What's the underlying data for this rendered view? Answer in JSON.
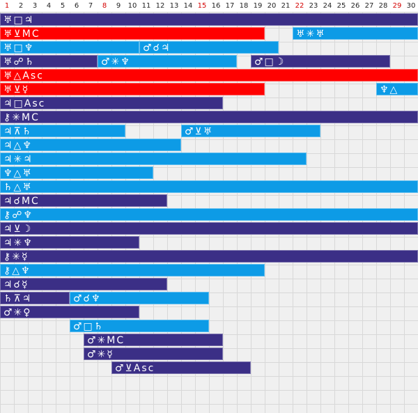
{
  "colors": {
    "dark": "#3b2f86",
    "light": "#0d9be6",
    "red": "#ff0000",
    "weekend": "#d40000"
  },
  "days": [
    {
      "label": "1",
      "hl": true
    },
    {
      "label": "2",
      "hl": false
    },
    {
      "label": "3",
      "hl": false
    },
    {
      "label": "4",
      "hl": false
    },
    {
      "label": "5",
      "hl": false
    },
    {
      "label": "6",
      "hl": false
    },
    {
      "label": "7",
      "hl": false
    },
    {
      "label": "8",
      "hl": true
    },
    {
      "label": "9",
      "hl": false
    },
    {
      "label": "10",
      "hl": false
    },
    {
      "label": "11",
      "hl": false
    },
    {
      "label": "12",
      "hl": false
    },
    {
      "label": "13",
      "hl": false
    },
    {
      "label": "14",
      "hl": false
    },
    {
      "label": "15",
      "hl": true
    },
    {
      "label": "16",
      "hl": false
    },
    {
      "label": "17",
      "hl": false
    },
    {
      "label": "18",
      "hl": false
    },
    {
      "label": "19",
      "hl": false
    },
    {
      "label": "20",
      "hl": false
    },
    {
      "label": "21",
      "hl": false
    },
    {
      "label": "22",
      "hl": true
    },
    {
      "label": "23",
      "hl": false
    },
    {
      "label": "24",
      "hl": false
    },
    {
      "label": "25",
      "hl": false
    },
    {
      "label": "26",
      "hl": false
    },
    {
      "label": "27",
      "hl": false
    },
    {
      "label": "28",
      "hl": false
    },
    {
      "label": "29",
      "hl": true
    },
    {
      "label": "30",
      "hl": false
    }
  ],
  "rows": [
    [
      {
        "label": "♅□♃",
        "start": 1,
        "end": 30,
        "color": "dark"
      }
    ],
    [
      {
        "label": "♅⊻MC",
        "start": 1,
        "end": 19,
        "color": "red"
      },
      {
        "label": "♅✳♅",
        "start": 22,
        "end": 30,
        "color": "light"
      }
    ],
    [
      {
        "label": "♅□♆",
        "start": 1,
        "end": 10,
        "color": "light"
      },
      {
        "label": "♂☌♃",
        "start": 11,
        "end": 20,
        "color": "light"
      }
    ],
    [
      {
        "label": "♅☍♄",
        "start": 1,
        "end": 7,
        "color": "dark"
      },
      {
        "label": "♂✳♆",
        "start": 8,
        "end": 17,
        "color": "light"
      },
      {
        "label": "♂□☽",
        "start": 19,
        "end": 28,
        "color": "dark"
      }
    ],
    [
      {
        "label": "♅△Asc",
        "start": 1,
        "end": 30,
        "color": "red"
      }
    ],
    [
      {
        "label": "♅⊻☿",
        "start": 1,
        "end": 19,
        "color": "red"
      },
      {
        "label": "♆△",
        "start": 28,
        "end": 30,
        "color": "light"
      }
    ],
    [
      {
        "label": "♃□Asc",
        "start": 1,
        "end": 16,
        "color": "dark"
      }
    ],
    [
      {
        "label": "⚷✳MC",
        "start": 1,
        "end": 30,
        "color": "dark"
      }
    ],
    [
      {
        "label": "♃⊼♄",
        "start": 1,
        "end": 9,
        "color": "light"
      },
      {
        "label": "♂⊻♅",
        "start": 14,
        "end": 23,
        "color": "light"
      }
    ],
    [
      {
        "label": "♃△♆",
        "start": 1,
        "end": 13,
        "color": "light"
      }
    ],
    [
      {
        "label": "♃✳♃",
        "start": 1,
        "end": 22,
        "color": "light"
      }
    ],
    [
      {
        "label": "♆△♅",
        "start": 1,
        "end": 11,
        "color": "light"
      }
    ],
    [
      {
        "label": "♄△♅",
        "start": 1,
        "end": 30,
        "color": "light"
      }
    ],
    [
      {
        "label": "♃☌MC",
        "start": 1,
        "end": 12,
        "color": "dark"
      }
    ],
    [
      {
        "label": "⚷☍♆",
        "start": 1,
        "end": 30,
        "color": "light"
      }
    ],
    [
      {
        "label": "♃⊻☽",
        "start": 1,
        "end": 30,
        "color": "dark"
      }
    ],
    [
      {
        "label": "♃✳♆",
        "start": 1,
        "end": 10,
        "color": "dark"
      }
    ],
    [
      {
        "label": "⚷✳☿",
        "start": 1,
        "end": 30,
        "color": "dark"
      }
    ],
    [
      {
        "label": "⚷△♆",
        "start": 1,
        "end": 19,
        "color": "light"
      }
    ],
    [
      {
        "label": "♃☌☿",
        "start": 1,
        "end": 12,
        "color": "dark"
      }
    ],
    [
      {
        "label": "♄⊼♃",
        "start": 1,
        "end": 5,
        "color": "dark"
      },
      {
        "label": "♂☌♆",
        "start": 6,
        "end": 15,
        "color": "light"
      }
    ],
    [
      {
        "label": "♂✳♀",
        "start": 1,
        "end": 10,
        "color": "dark"
      }
    ],
    [
      {
        "label": "♂□♄",
        "start": 6,
        "end": 15,
        "color": "light"
      }
    ],
    [
      {
        "label": "♂✳MC",
        "start": 7,
        "end": 16,
        "color": "dark"
      }
    ],
    [
      {
        "label": "♂✳☿",
        "start": 7,
        "end": 16,
        "color": "dark"
      }
    ],
    [
      {
        "label": "♂⊻Asc",
        "start": 9,
        "end": 18,
        "color": "dark"
      }
    ]
  ]
}
